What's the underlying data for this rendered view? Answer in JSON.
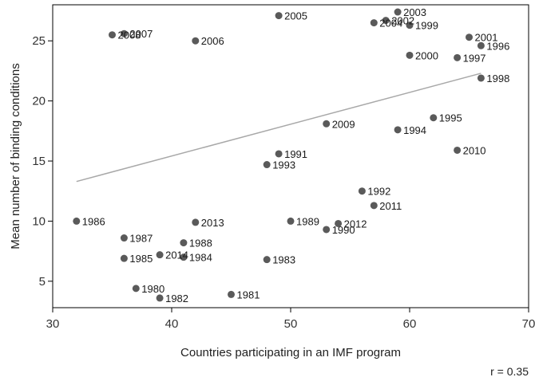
{
  "chart_data": {
    "type": "scatter",
    "title": "",
    "xlabel": "Countries participating in an IMF program",
    "ylabel": "Mean number of binding conditions",
    "xlim": [
      30,
      70
    ],
    "ylim": [
      2.8,
      28
    ],
    "xticks": [
      30,
      40,
      50,
      60,
      70
    ],
    "yticks": [
      5,
      10,
      15,
      20,
      25
    ],
    "grid": false,
    "legend": "none",
    "marker_color": "#5a5a5a",
    "line_color": "#a8a8a8",
    "points": [
      {
        "label": "1980",
        "x": 37,
        "y": 4.4
      },
      {
        "label": "1981",
        "x": 45,
        "y": 3.9
      },
      {
        "label": "1982",
        "x": 39,
        "y": 3.6
      },
      {
        "label": "1983",
        "x": 48,
        "y": 6.8
      },
      {
        "label": "1984",
        "x": 41,
        "y": 7.0
      },
      {
        "label": "1985",
        "x": 36,
        "y": 6.9
      },
      {
        "label": "1986",
        "x": 32,
        "y": 10.0
      },
      {
        "label": "1987",
        "x": 36,
        "y": 8.6
      },
      {
        "label": "1988",
        "x": 41,
        "y": 8.2
      },
      {
        "label": "1989",
        "x": 50,
        "y": 10.0
      },
      {
        "label": "1990",
        "x": 53,
        "y": 9.3
      },
      {
        "label": "1991",
        "x": 49,
        "y": 15.6
      },
      {
        "label": "1992",
        "x": 56,
        "y": 12.5
      },
      {
        "label": "1993",
        "x": 48,
        "y": 14.7
      },
      {
        "label": "1994",
        "x": 59,
        "y": 17.6
      },
      {
        "label": "1995",
        "x": 62,
        "y": 18.6
      },
      {
        "label": "1996",
        "x": 66,
        "y": 24.6
      },
      {
        "label": "1997",
        "x": 64,
        "y": 23.6
      },
      {
        "label": "1998",
        "x": 66,
        "y": 21.9
      },
      {
        "label": "1999",
        "x": 60,
        "y": 26.3
      },
      {
        "label": "2000",
        "x": 60,
        "y": 23.8
      },
      {
        "label": "2001",
        "x": 65,
        "y": 25.3
      },
      {
        "label": "2002",
        "x": 58,
        "y": 26.7
      },
      {
        "label": "2003",
        "x": 59,
        "y": 27.4
      },
      {
        "label": "2004",
        "x": 57,
        "y": 26.5
      },
      {
        "label": "2005",
        "x": 49,
        "y": 27.1
      },
      {
        "label": "2006",
        "x": 42,
        "y": 25.0
      },
      {
        "label": "2007",
        "x": 36,
        "y": 25.6
      },
      {
        "label": "2008",
        "x": 35,
        "y": 25.5
      },
      {
        "label": "2009",
        "x": 53,
        "y": 18.1
      },
      {
        "label": "2010",
        "x": 64,
        "y": 15.9
      },
      {
        "label": "2011",
        "x": 57,
        "y": 11.3
      },
      {
        "label": "2012",
        "x": 54,
        "y": 9.8
      },
      {
        "label": "2013",
        "x": 42,
        "y": 9.9
      },
      {
        "label": "2014",
        "x": 39,
        "y": 7.2
      }
    ],
    "fit_line": {
      "x": [
        32,
        66
      ],
      "y": [
        13.3,
        22.3
      ]
    },
    "annotation": "r =  0.35"
  }
}
